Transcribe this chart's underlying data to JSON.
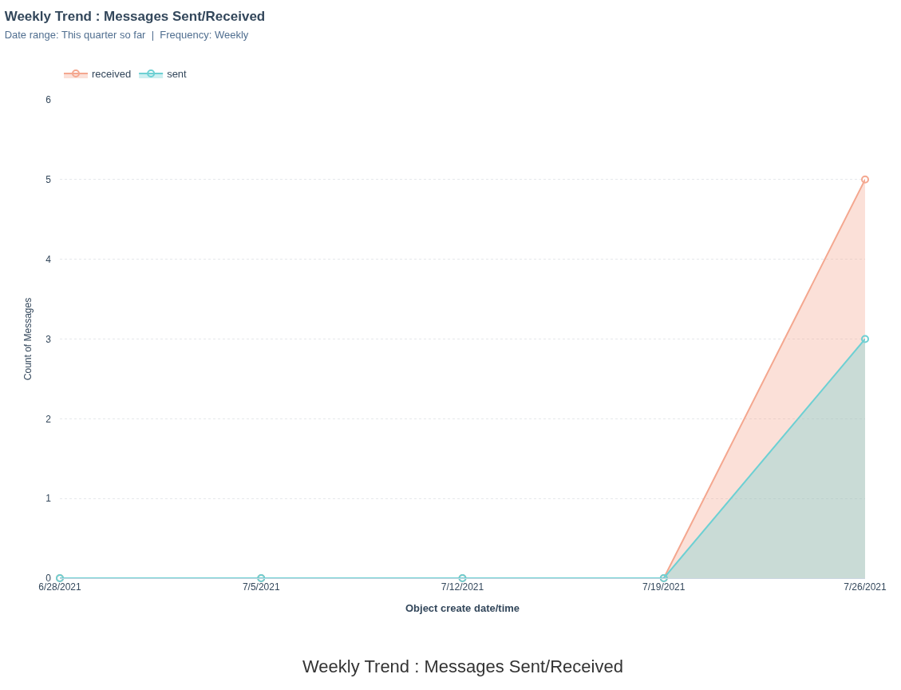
{
  "chart_data": {
    "type": "area",
    "title": "Weekly Trend : Messages Sent/Received",
    "subtitle": "Date range: This quarter so far  |  Frequency: Weekly",
    "xlabel": "Object create date/time",
    "ylabel": "Count of Messages",
    "categories": [
      "6/28/2021",
      "7/5/2021",
      "7/12/2021",
      "7/19/2021",
      "7/26/2021"
    ],
    "series": [
      {
        "name": "received",
        "color": "#f4a78f",
        "values": [
          0,
          0,
          0,
          0,
          5
        ]
      },
      {
        "name": "sent",
        "color": "#6dd0d3",
        "values": [
          0,
          0,
          0,
          0,
          3
        ]
      }
    ],
    "ylim": [
      0,
      6
    ],
    "yticks": [
      0,
      1,
      2,
      3,
      4,
      5,
      6
    ],
    "grid": "y",
    "legend": "top left",
    "marker": "circle",
    "line_style": "solid",
    "annotations": [
      "Weekly Trend : Messages Sent/Received"
    ]
  }
}
